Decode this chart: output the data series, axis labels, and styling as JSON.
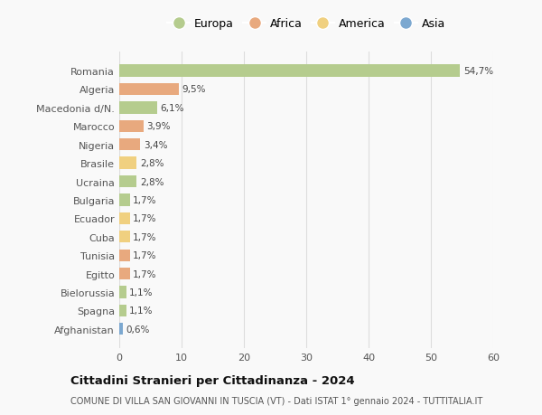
{
  "categories": [
    "Romania",
    "Algeria",
    "Macedonia d/N.",
    "Marocco",
    "Nigeria",
    "Brasile",
    "Ucraina",
    "Bulgaria",
    "Ecuador",
    "Cuba",
    "Tunisia",
    "Egitto",
    "Bielorussia",
    "Spagna",
    "Afghanistan"
  ],
  "values": [
    54.7,
    9.5,
    6.1,
    3.9,
    3.4,
    2.8,
    2.8,
    1.7,
    1.7,
    1.7,
    1.7,
    1.7,
    1.1,
    1.1,
    0.6
  ],
  "labels": [
    "54,7%",
    "9,5%",
    "6,1%",
    "3,9%",
    "3,4%",
    "2,8%",
    "2,8%",
    "1,7%",
    "1,7%",
    "1,7%",
    "1,7%",
    "1,7%",
    "1,1%",
    "1,1%",
    "0,6%"
  ],
  "continents": [
    "Europa",
    "Africa",
    "Europa",
    "Africa",
    "Africa",
    "America",
    "Europa",
    "Europa",
    "America",
    "America",
    "Africa",
    "Africa",
    "Europa",
    "Europa",
    "Asia"
  ],
  "continent_colors": {
    "Europa": "#b5cc8e",
    "Africa": "#e8a97e",
    "America": "#f0d080",
    "Asia": "#7ca8d0"
  },
  "legend_order": [
    "Europa",
    "Africa",
    "America",
    "Asia"
  ],
  "title": "Cittadini Stranieri per Cittadinanza - 2024",
  "subtitle": "COMUNE DI VILLA SAN GIOVANNI IN TUSCIA (VT) - Dati ISTAT 1° gennaio 2024 - TUTTITALIA.IT",
  "xlim": [
    0,
    60
  ],
  "xticks": [
    0,
    10,
    20,
    30,
    40,
    50,
    60
  ],
  "background_color": "#f9f9f9",
  "grid_color": "#dddddd"
}
